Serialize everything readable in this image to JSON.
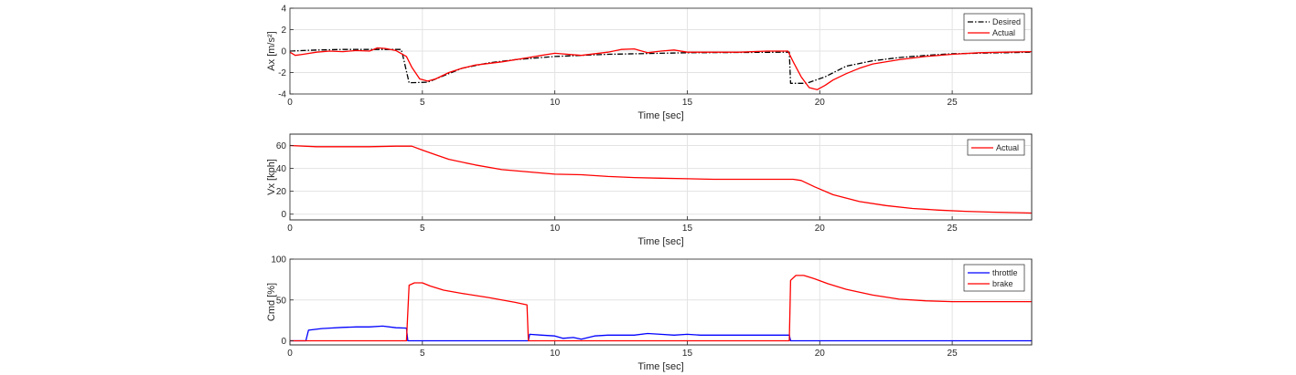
{
  "chart_data": [
    {
      "type": "line",
      "xlabel": "Time [sec]",
      "ylabel": "Ax [m/s²]",
      "xlim": [
        0,
        28
      ],
      "ylim": [
        -4,
        4
      ],
      "xticks": [
        0,
        5,
        10,
        15,
        20,
        25
      ],
      "yticks": [
        -4,
        -2,
        0,
        2,
        4
      ],
      "grid": true,
      "legend": "top-right",
      "series": [
        {
          "name": "Desired",
          "color": "#000000",
          "dash": "dashdot",
          "x": [
            0,
            1,
            2,
            3,
            4.2,
            4.25,
            4.5,
            5.2,
            5.8,
            6.5,
            7.5,
            8.5,
            10,
            12,
            15,
            18.85,
            18.9,
            19.5,
            20.2,
            21,
            22,
            23,
            24,
            25,
            28
          ],
          "y": [
            0,
            0.1,
            0.15,
            0.15,
            0.15,
            -0.3,
            -2.95,
            -2.9,
            -2.3,
            -1.6,
            -1.1,
            -0.8,
            -0.5,
            -0.3,
            -0.15,
            -0.1,
            -3.0,
            -3.0,
            -2.4,
            -1.4,
            -0.9,
            -0.6,
            -0.4,
            -0.25,
            -0.1
          ]
        },
        {
          "name": "Actual",
          "color": "#ff0000",
          "x": [
            0,
            0.2,
            0.5,
            1,
            1.5,
            2,
            2.5,
            3,
            3.3,
            3.6,
            4,
            4.4,
            4.6,
            4.9,
            5.2,
            5.5,
            6,
            6.5,
            7,
            8,
            9,
            9.5,
            10,
            11,
            12,
            12.5,
            13,
            13.5,
            14,
            14.5,
            15,
            16,
            17,
            18,
            18.8,
            19,
            19.3,
            19.6,
            19.9,
            20.2,
            20.5,
            21,
            21.5,
            22,
            23,
            24,
            25,
            26,
            27,
            28
          ],
          "y": [
            -0.1,
            -0.4,
            -0.3,
            -0.1,
            0,
            -0.05,
            0.05,
            0,
            0.3,
            0.25,
            0.05,
            -0.5,
            -1.5,
            -2.6,
            -2.8,
            -2.6,
            -2.0,
            -1.6,
            -1.3,
            -1.0,
            -0.6,
            -0.4,
            -0.2,
            -0.4,
            -0.1,
            0.15,
            0.2,
            -0.15,
            0,
            0.1,
            -0.1,
            -0.1,
            -0.1,
            0,
            0,
            -1.0,
            -2.4,
            -3.4,
            -3.6,
            -3.2,
            -2.7,
            -2.1,
            -1.6,
            -1.2,
            -0.8,
            -0.5,
            -0.3,
            -0.15,
            -0.1,
            -0.05
          ]
        }
      ]
    },
    {
      "type": "line",
      "xlabel": "Time [sec]",
      "ylabel": "Vx [kph]",
      "xlim": [
        0,
        28
      ],
      "ylim": [
        -5,
        70
      ],
      "xticks": [
        0,
        5,
        10,
        15,
        20,
        25
      ],
      "yticks": [
        0,
        20,
        40,
        60
      ],
      "grid": true,
      "legend": "top-right",
      "series": [
        {
          "name": "Actual",
          "color": "#ff0000",
          "x": [
            0,
            1,
            2,
            3,
            4,
            4.6,
            5,
            5.5,
            6,
            7,
            8,
            9,
            10,
            11,
            12,
            13,
            14,
            15,
            16,
            17,
            18,
            19,
            19.3,
            19.8,
            20.5,
            21.5,
            22.5,
            23.5,
            24.5,
            25.5,
            26.5,
            27.5,
            28
          ],
          "y": [
            60,
            59,
            59,
            59,
            59.5,
            59.5,
            56,
            52,
            48,
            43,
            39,
            37,
            35,
            34.5,
            33,
            32,
            31.5,
            31,
            30.5,
            30.5,
            30.5,
            30.5,
            29.5,
            24,
            17,
            11,
            7.5,
            5,
            3.5,
            2.5,
            1.8,
            1.3,
            1
          ]
        }
      ]
    },
    {
      "type": "line",
      "xlabel": "Time [sec]",
      "ylabel": "Cmd [%]",
      "xlim": [
        0,
        28
      ],
      "ylim": [
        -5,
        100
      ],
      "xticks": [
        0,
        5,
        10,
        15,
        20,
        25
      ],
      "yticks": [
        0,
        50,
        100
      ],
      "grid": true,
      "legend": "top-right",
      "series": [
        {
          "name": "throttle",
          "color": "#0000ff",
          "x": [
            0,
            0.6,
            0.7,
            1.2,
            1.5,
            2,
            2.5,
            3,
            3.5,
            4,
            4.4,
            4.45,
            9.0,
            9.05,
            9.5,
            10,
            10.3,
            10.7,
            11,
            11.5,
            12,
            12.5,
            13,
            13.5,
            14,
            14.5,
            15,
            15.5,
            16,
            17,
            18,
            18.85,
            18.9,
            28
          ],
          "y": [
            0,
            0,
            13,
            15,
            15.5,
            16.5,
            17,
            17,
            18,
            16,
            15.5,
            0,
            0,
            8,
            7,
            6,
            3,
            4,
            2,
            6,
            7,
            7,
            7,
            9,
            8,
            7,
            8,
            7,
            7,
            7,
            7,
            7,
            0,
            0
          ]
        },
        {
          "name": "brake",
          "color": "#ff0000",
          "x": [
            0,
            4.4,
            4.5,
            4.7,
            5,
            5.3,
            5.8,
            6.5,
            7.5,
            8.5,
            8.95,
            9.0,
            18.85,
            18.9,
            19.1,
            19.4,
            19.8,
            20.3,
            21,
            22,
            23,
            24,
            25,
            26,
            27,
            28
          ],
          "y": [
            0,
            0,
            68,
            71,
            71,
            67,
            62,
            58,
            53,
            47,
            44,
            0,
            0,
            74,
            80,
            80,
            76,
            70,
            63,
            56,
            51,
            49,
            48,
            48,
            48,
            48
          ]
        }
      ]
    }
  ]
}
